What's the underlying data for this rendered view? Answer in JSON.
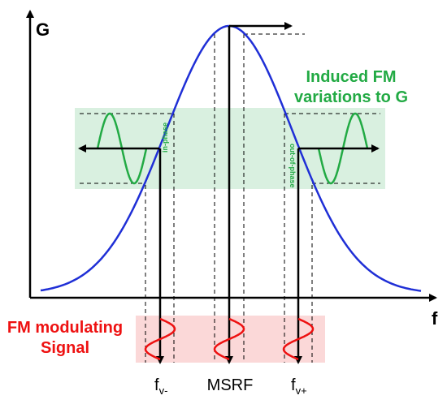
{
  "axes": {
    "y_label": "G",
    "x_label": "f"
  },
  "annotations": {
    "induced_line1": "Induced FM",
    "induced_line2": "variations to G",
    "modulating_line1": "FM modulating",
    "modulating_line2": "Signal",
    "in_phase": "in-phase",
    "out_of_phase": "out-of-phase"
  },
  "frequency_labels": {
    "fv_minus_main": "f",
    "fv_minus_sub": "v-",
    "msrf": "MSRF",
    "fv_plus_main": "f",
    "fv_plus_sub": "v+"
  },
  "colors": {
    "curve": "#1f2fd6",
    "induced_text": "#22aa44",
    "induced_wave": "#22aa44",
    "induced_band": "#d9f0e0",
    "modulating_text": "#ee1111",
    "modulating_wave": "#ee1111",
    "modulating_band": "#fbd8d8",
    "axis": "#000000"
  }
}
